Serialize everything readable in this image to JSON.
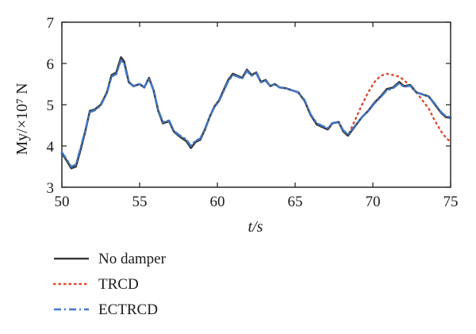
{
  "chart_data": {
    "type": "line",
    "title": "",
    "xlabel": "t/s",
    "ylabel": "My/×10⁷ N",
    "xlim": [
      50,
      75
    ],
    "ylim": [
      3,
      7
    ],
    "x_ticks": [
      50,
      55,
      60,
      65,
      70,
      75
    ],
    "y_ticks": [
      3,
      4,
      5,
      6,
      7
    ],
    "grid": false,
    "legend_position": "bottom-left, below plot",
    "series": [
      {
        "name": "No damper",
        "color": "#3a3a3a",
        "style": "solid",
        "x": [
          50.0,
          50.3,
          50.6,
          50.9,
          51.2,
          51.5,
          51.8,
          52.1,
          52.5,
          52.9,
          53.2,
          53.5,
          53.8,
          54.0,
          54.3,
          54.6,
          55.0,
          55.3,
          55.6,
          55.9,
          56.2,
          56.5,
          56.9,
          57.2,
          57.6,
          58.0,
          58.3,
          58.6,
          58.9,
          59.2,
          59.5,
          59.8,
          60.1,
          60.4,
          60.7,
          61.0,
          61.3,
          61.6,
          61.9,
          62.2,
          62.5,
          62.8,
          63.1,
          63.4,
          63.7,
          64.0,
          64.4,
          64.8,
          65.2,
          65.6,
          66.0,
          66.4,
          66.8,
          67.1,
          67.4,
          67.8,
          68.1,
          68.4,
          68.7,
          69.0,
          69.3,
          69.7,
          70.1,
          70.5,
          70.9,
          71.3,
          71.7,
          72.0,
          72.4,
          72.8,
          73.2,
          73.6,
          74.0,
          74.4,
          74.7,
          75.0
        ],
        "y": [
          3.82,
          3.65,
          3.46,
          3.5,
          3.9,
          4.35,
          4.85,
          4.88,
          5.0,
          5.3,
          5.72,
          5.78,
          6.15,
          6.05,
          5.55,
          5.45,
          5.5,
          5.42,
          5.65,
          5.35,
          4.85,
          4.55,
          4.6,
          4.35,
          4.22,
          4.12,
          3.95,
          4.1,
          4.15,
          4.4,
          4.7,
          4.95,
          5.1,
          5.35,
          5.6,
          5.75,
          5.7,
          5.65,
          5.85,
          5.72,
          5.78,
          5.55,
          5.6,
          5.45,
          5.5,
          5.42,
          5.4,
          5.35,
          5.3,
          5.1,
          4.75,
          4.52,
          4.45,
          4.4,
          4.55,
          4.58,
          4.35,
          4.25,
          4.4,
          4.55,
          4.7,
          4.85,
          5.05,
          5.2,
          5.38,
          5.42,
          5.55,
          5.45,
          5.48,
          5.3,
          5.25,
          5.2,
          5.0,
          4.8,
          4.7,
          4.68
        ]
      },
      {
        "name": "TRCD",
        "color": "#e0452b",
        "style": "dotted",
        "x": [
          50.0,
          50.3,
          50.6,
          50.9,
          51.2,
          51.5,
          51.8,
          52.1,
          52.5,
          52.9,
          53.2,
          53.5,
          53.8,
          54.0,
          54.3,
          54.6,
          55.0,
          55.3,
          55.6,
          55.9,
          56.2,
          56.5,
          56.9,
          57.2,
          57.6,
          58.0,
          58.3,
          58.6,
          58.9,
          59.2,
          59.5,
          59.8,
          60.1,
          60.4,
          60.7,
          61.0,
          61.3,
          61.6,
          61.9,
          62.2,
          62.5,
          62.8,
          63.1,
          63.4,
          63.7,
          64.0,
          64.4,
          64.8,
          65.2,
          65.6,
          66.0,
          66.4,
          66.8,
          67.1,
          67.4,
          67.8,
          68.1,
          68.4,
          68.7,
          69.0,
          69.3,
          69.7,
          70.1,
          70.5,
          70.9,
          71.3,
          71.7,
          72.0,
          72.4,
          72.8,
          73.2,
          73.6,
          74.0,
          74.4,
          74.7,
          75.0
        ],
        "y": [
          3.82,
          3.65,
          3.46,
          3.5,
          3.9,
          4.35,
          4.85,
          4.88,
          5.0,
          5.3,
          5.72,
          5.78,
          6.15,
          6.05,
          5.55,
          5.45,
          5.5,
          5.42,
          5.65,
          5.35,
          4.85,
          4.55,
          4.6,
          4.35,
          4.22,
          4.12,
          3.95,
          4.1,
          4.15,
          4.4,
          4.7,
          4.95,
          5.1,
          5.35,
          5.6,
          5.75,
          5.7,
          5.65,
          5.85,
          5.72,
          5.78,
          5.55,
          5.6,
          5.45,
          5.5,
          5.42,
          5.4,
          5.35,
          5.3,
          5.1,
          4.75,
          4.52,
          4.45,
          4.4,
          4.55,
          4.58,
          4.35,
          4.25,
          4.5,
          4.75,
          5.0,
          5.3,
          5.55,
          5.7,
          5.75,
          5.72,
          5.68,
          5.6,
          5.45,
          5.3,
          5.1,
          4.9,
          4.6,
          4.35,
          4.2,
          4.1
        ]
      },
      {
        "name": "ECTRCD",
        "color": "#3f78c8",
        "style": "dash-dot",
        "x": [
          50.0,
          50.3,
          50.6,
          50.9,
          51.2,
          51.5,
          51.8,
          52.1,
          52.5,
          52.9,
          53.2,
          53.5,
          53.8,
          54.0,
          54.3,
          54.6,
          55.0,
          55.3,
          55.6,
          55.9,
          56.2,
          56.5,
          56.9,
          57.2,
          57.6,
          58.0,
          58.3,
          58.6,
          58.9,
          59.2,
          59.5,
          59.8,
          60.1,
          60.4,
          60.7,
          61.0,
          61.3,
          61.6,
          61.9,
          62.2,
          62.5,
          62.8,
          63.1,
          63.4,
          63.7,
          64.0,
          64.4,
          64.8,
          65.2,
          65.6,
          66.0,
          66.4,
          66.8,
          67.1,
          67.4,
          67.8,
          68.1,
          68.4,
          68.7,
          69.0,
          69.3,
          69.7,
          70.1,
          70.5,
          70.9,
          71.3,
          71.7,
          72.0,
          72.4,
          72.8,
          73.2,
          73.6,
          74.0,
          74.4,
          74.7,
          75.0
        ],
        "y": [
          3.85,
          3.68,
          3.5,
          3.55,
          3.95,
          4.38,
          4.82,
          4.86,
          4.98,
          5.28,
          5.68,
          5.74,
          6.08,
          6.0,
          5.53,
          5.46,
          5.5,
          5.43,
          5.62,
          5.35,
          4.87,
          4.58,
          4.62,
          4.37,
          4.25,
          4.16,
          4.0,
          4.13,
          4.18,
          4.42,
          4.7,
          4.93,
          5.08,
          5.32,
          5.57,
          5.72,
          5.68,
          5.63,
          5.82,
          5.7,
          5.76,
          5.54,
          5.58,
          5.45,
          5.49,
          5.42,
          5.4,
          5.35,
          5.3,
          5.12,
          4.77,
          4.55,
          4.48,
          4.43,
          4.56,
          4.58,
          4.38,
          4.28,
          4.42,
          4.56,
          4.7,
          4.84,
          5.03,
          5.18,
          5.35,
          5.4,
          5.52,
          5.43,
          5.46,
          5.3,
          5.25,
          5.2,
          5.02,
          4.82,
          4.72,
          4.7
        ]
      }
    ]
  }
}
